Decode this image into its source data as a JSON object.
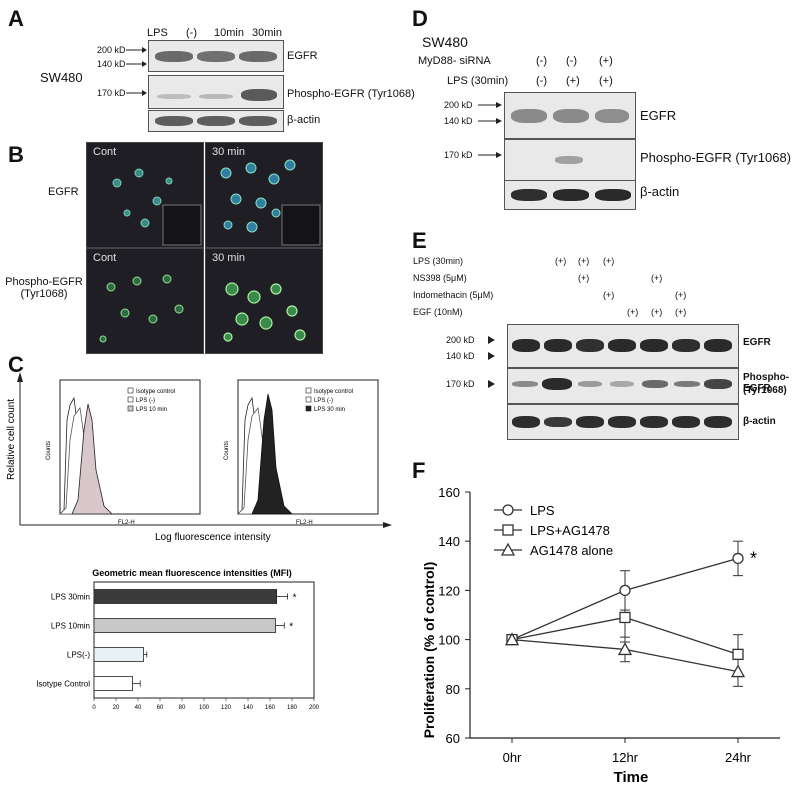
{
  "panelA": {
    "letter": "A",
    "cell_line": "SW480",
    "lps_label": "LPS",
    "conditions": [
      "(-)",
      "10min",
      "30min"
    ],
    "mw": [
      "200 kD",
      "140 kD",
      "170 kD"
    ],
    "rows": [
      "EGFR",
      "Phospho-EGFR (Tyr1068)",
      "β-actin"
    ]
  },
  "panelB": {
    "letter": "B",
    "rows": [
      "EGFR",
      "Phospho-EGFR\n(Tyr1068)"
    ],
    "cols": [
      "Cont",
      "30 min"
    ]
  },
  "panelC": {
    "letter": "C",
    "ylabel": "Relative cell count",
    "xlabel": "Log fluorescence intensity",
    "hist_ylabel": "Counts",
    "hist_xlabel": "FL2-H",
    "legend1": [
      "Isotype control",
      "LPS (-)",
      "LPS 10 min"
    ],
    "legend2": [
      "Isotype control",
      "LPS (-)",
      "LPS 30 min"
    ],
    "bar_title": "Geometric mean fluorescence intensities (MFI)"
  },
  "panelD": {
    "letter": "D",
    "cell_line": "SW480",
    "row_labels": [
      "MyD88- siRNA",
      "LPS (30min)"
    ],
    "myd88": [
      "(-)",
      "(-)",
      "(+)"
    ],
    "lps": [
      "(-)",
      "(+)",
      "(+)"
    ],
    "mw": [
      "200 kD",
      "140 kD",
      "170 kD"
    ],
    "rows": [
      "EGFR",
      "Phospho-EGFR (Tyr1068)",
      "β-actin"
    ]
  },
  "panelE": {
    "letter": "E",
    "treatments": [
      "LPS  (30min)",
      "NS398 (5μM)",
      "Indomethacin (5μM)",
      "EGF (10nM)"
    ],
    "signs": [
      [
        "",
        "(+)",
        "(+)",
        "(+)",
        "",
        "",
        ""
      ],
      [
        "",
        "",
        "(+)",
        "",
        "",
        "(+)",
        ""
      ],
      [
        "",
        "",
        "",
        "(+)",
        "",
        "",
        "(+)"
      ],
      [
        "",
        "",
        "",
        "",
        "(+)",
        "(+)",
        "(+)"
      ]
    ],
    "mw": [
      "200 kD",
      "140 kD",
      "170 kD"
    ],
    "rows": [
      "EGFR",
      "Phospho-EGFR",
      "(Tyr1068)",
      "β-actin"
    ]
  },
  "panelF": {
    "letter": "F"
  },
  "chart_data": [
    {
      "type": "bar",
      "title": "Geometric mean fluorescence intensities (MFI)",
      "orientation": "horizontal",
      "categories": [
        "LPS 30min",
        "LPS 10min",
        "LPS(-)",
        "Isotype Control"
      ],
      "values": [
        166,
        165,
        45,
        35
      ],
      "errors": [
        10,
        8,
        3,
        7
      ],
      "annotations": [
        "*",
        "*",
        "",
        ""
      ],
      "colors": [
        "#3a3a3a",
        "#c8c8c8",
        "#e6f2f6",
        "#ffffff"
      ],
      "xlim": [
        0,
        200
      ],
      "xticks": [
        0,
        20,
        40,
        60,
        80,
        100,
        120,
        140,
        160,
        180,
        200
      ]
    },
    {
      "type": "line",
      "categories": [
        "0hr",
        "12hr",
        "24hr"
      ],
      "xlabel": "Time",
      "ylabel": "Proliferation (% of control)",
      "ylim": [
        60,
        160
      ],
      "yticks": [
        60,
        80,
        100,
        120,
        140,
        160
      ],
      "series": [
        {
          "name": "LPS",
          "marker": "circle",
          "values": [
            100,
            120,
            133
          ],
          "errors": [
            0,
            8,
            7
          ]
        },
        {
          "name": "LPS+AG1478",
          "marker": "square",
          "values": [
            100,
            109,
            94
          ],
          "errors": [
            0,
            10,
            8
          ]
        },
        {
          "name": "AG1478 alone",
          "marker": "triangle",
          "values": [
            100,
            96,
            87
          ],
          "errors": [
            0,
            5,
            6
          ]
        }
      ],
      "annotations": [
        {
          "series": "LPS",
          "x": "24hr",
          "text": "*"
        }
      ]
    }
  ]
}
